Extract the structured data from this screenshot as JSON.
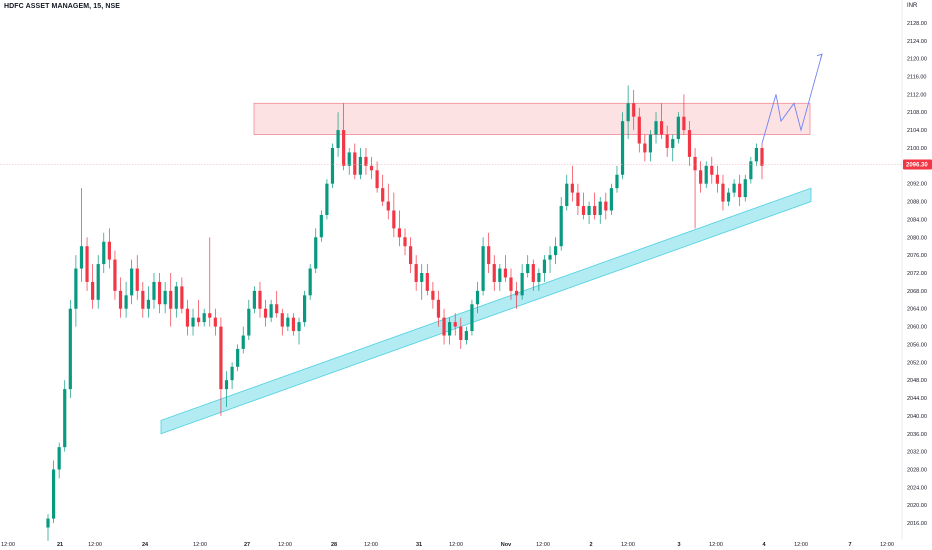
{
  "header": {
    "title": "HDFC ASSET MANAGEM, 15, NSE",
    "currency": "INR"
  },
  "colors": {
    "up": "#089981",
    "down": "#f23645",
    "resistance_fill": "#fde2e4",
    "resistance_stroke": "#f28b95",
    "support_fill": "#b2ebf2",
    "support_stroke": "#4dd0e1",
    "projection": "#6f83f3",
    "price_tag": "#f23645",
    "price_line": "#f7a8b0"
  },
  "chart_data": {
    "type": "candlestick",
    "title": "HDFC ASSET MANAGEM, 15, NSE",
    "ylim": [
      2014,
      2130
    ],
    "y_ticks": [
      2016,
      2020,
      2024,
      2028,
      2032,
      2036,
      2040,
      2044,
      2048,
      2052,
      2056,
      2060,
      2064,
      2068,
      2072,
      2076,
      2080,
      2084,
      2088,
      2092,
      2096,
      2100,
      2104,
      2108,
      2112,
      2116,
      2120,
      2124,
      2128
    ],
    "x_tick_labels": [
      "12:00",
      "21",
      "12:00",
      "24",
      "12:00",
      "27",
      "12:00",
      "28",
      "12:00",
      "31",
      "12:00",
      "Nov",
      "12:00",
      "2",
      "12:00",
      "3",
      "12:00",
      "4",
      "12:00",
      "7",
      "12:00"
    ],
    "last_price": "2096.30",
    "candles": [
      [
        2015,
        2018,
        2012,
        2017
      ],
      [
        2017,
        2030,
        2016,
        2028
      ],
      [
        2028,
        2034,
        2026,
        2033
      ],
      [
        2033,
        2048,
        2032,
        2046
      ],
      [
        2046,
        2066,
        2044,
        2064
      ],
      [
        2064,
        2076,
        2060,
        2073
      ],
      [
        2073,
        2091,
        2070,
        2078
      ],
      [
        2078,
        2080,
        2068,
        2070
      ],
      [
        2070,
        2074,
        2064,
        2066
      ],
      [
        2066,
        2076,
        2064,
        2074
      ],
      [
        2074,
        2081,
        2072,
        2079
      ],
      [
        2079,
        2082,
        2073,
        2075
      ],
      [
        2075,
        2077,
        2066,
        2068
      ],
      [
        2068,
        2071,
        2062,
        2064
      ],
      [
        2064,
        2070,
        2062,
        2067
      ],
      [
        2067,
        2075,
        2065,
        2073
      ],
      [
        2073,
        2076,
        2066,
        2068
      ],
      [
        2068,
        2070,
        2062,
        2064
      ],
      [
        2064,
        2069,
        2062,
        2066
      ],
      [
        2066,
        2072,
        2064,
        2070
      ],
      [
        2070,
        2072,
        2063,
        2065
      ],
      [
        2065,
        2070,
        2063,
        2068
      ],
      [
        2068,
        2072,
        2060,
        2064
      ],
      [
        2064,
        2070,
        2062,
        2069
      ],
      [
        2069,
        2071,
        2063,
        2064
      ],
      [
        2064,
        2066,
        2058,
        2060
      ],
      [
        2060,
        2064,
        2058,
        2062
      ],
      [
        2062,
        2066,
        2060,
        2061
      ],
      [
        2061,
        2064,
        2060,
        2063
      ],
      [
        2063,
        2080,
        2060,
        2062
      ],
      [
        2062,
        2064,
        2058,
        2060
      ],
      [
        2060,
        2062,
        2040,
        2046
      ],
      [
        2046,
        2050,
        2042,
        2048
      ],
      [
        2048,
        2052,
        2046,
        2051
      ],
      [
        2051,
        2056,
        2050,
        2055
      ],
      [
        2055,
        2060,
        2054,
        2058
      ],
      [
        2058,
        2066,
        2057,
        2064
      ],
      [
        2064,
        2069,
        2063,
        2068
      ],
      [
        2068,
        2070,
        2062,
        2064
      ],
      [
        2064,
        2066,
        2060,
        2062
      ],
      [
        2062,
        2066,
        2061,
        2065
      ],
      [
        2065,
        2068,
        2062,
        2063
      ],
      [
        2063,
        2064,
        2058,
        2060
      ],
      [
        2060,
        2063,
        2059,
        2062
      ],
      [
        2062,
        2063,
        2058,
        2059
      ],
      [
        2059,
        2062,
        2056,
        2061
      ],
      [
        2061,
        2068,
        2060,
        2067
      ],
      [
        2067,
        2074,
        2066,
        2073
      ],
      [
        2073,
        2082,
        2072,
        2080
      ],
      [
        2080,
        2086,
        2079,
        2085
      ],
      [
        2085,
        2093,
        2084,
        2092
      ],
      [
        2092,
        2101,
        2091,
        2100
      ],
      [
        2100,
        2108,
        2098,
        2104
      ],
      [
        2104,
        2110,
        2095,
        2096
      ],
      [
        2096,
        2100,
        2094,
        2099
      ],
      [
        2099,
        2101,
        2093,
        2094
      ],
      [
        2094,
        2100,
        2093,
        2098
      ],
      [
        2098,
        2100,
        2094,
        2096
      ],
      [
        2096,
        2098,
        2093,
        2095
      ],
      [
        2095,
        2097,
        2090,
        2091
      ],
      [
        2091,
        2094,
        2087,
        2088
      ],
      [
        2088,
        2092,
        2084,
        2086
      ],
      [
        2086,
        2090,
        2080,
        2082
      ],
      [
        2082,
        2086,
        2078,
        2080
      ],
      [
        2080,
        2082,
        2076,
        2078
      ],
      [
        2078,
        2080,
        2072,
        2074
      ],
      [
        2074,
        2076,
        2068,
        2070
      ],
      [
        2070,
        2074,
        2066,
        2072
      ],
      [
        2072,
        2074,
        2067,
        2068
      ],
      [
        2068,
        2070,
        2064,
        2066
      ],
      [
        2066,
        2068,
        2060,
        2062
      ],
      [
        2062,
        2064,
        2056,
        2058
      ],
      [
        2058,
        2062,
        2056,
        2061
      ],
      [
        2061,
        2063,
        2058,
        2060
      ],
      [
        2060,
        2062,
        2055,
        2057
      ],
      [
        2057,
        2060,
        2056,
        2059
      ],
      [
        2059,
        2066,
        2058,
        2065
      ],
      [
        2065,
        2070,
        2063,
        2068
      ],
      [
        2068,
        2080,
        2067,
        2078
      ],
      [
        2078,
        2081,
        2072,
        2074
      ],
      [
        2074,
        2076,
        2068,
        2070
      ],
      [
        2070,
        2074,
        2068,
        2073
      ],
      [
        2073,
        2076,
        2070,
        2071
      ],
      [
        2071,
        2073,
        2066,
        2068
      ],
      [
        2068,
        2070,
        2064,
        2067
      ],
      [
        2067,
        2074,
        2066,
        2072
      ],
      [
        2072,
        2076,
        2071,
        2074
      ],
      [
        2074,
        2075,
        2068,
        2070
      ],
      [
        2070,
        2073,
        2068,
        2072
      ],
      [
        2072,
        2076,
        2070,
        2075
      ],
      [
        2075,
        2078,
        2072,
        2076
      ],
      [
        2076,
        2080,
        2074,
        2078
      ],
      [
        2078,
        2089,
        2077,
        2087
      ],
      [
        2087,
        2094,
        2086,
        2092
      ],
      [
        2092,
        2096,
        2088,
        2090
      ],
      [
        2090,
        2092,
        2085,
        2087
      ],
      [
        2087,
        2090,
        2084,
        2085
      ],
      [
        2085,
        2088,
        2083,
        2087
      ],
      [
        2087,
        2090,
        2084,
        2085
      ],
      [
        2085,
        2089,
        2083,
        2088
      ],
      [
        2088,
        2090,
        2084,
        2086
      ],
      [
        2086,
        2092,
        2085,
        2091
      ],
      [
        2091,
        2096,
        2090,
        2094
      ],
      [
        2094,
        2108,
        2093,
        2106
      ],
      [
        2106,
        2114,
        2102,
        2110
      ],
      [
        2110,
        2113,
        2104,
        2107
      ],
      [
        2107,
        2109,
        2099,
        2101
      ],
      [
        2101,
        2103,
        2097,
        2099
      ],
      [
        2099,
        2104,
        2097,
        2103
      ],
      [
        2103,
        2108,
        2101,
        2106
      ],
      [
        2106,
        2110,
        2102,
        2103
      ],
      [
        2103,
        2105,
        2098,
        2100
      ],
      [
        2100,
        2103,
        2097,
        2102
      ],
      [
        2102,
        2108,
        2101,
        2107
      ],
      [
        2107,
        2112,
        2103,
        2104
      ],
      [
        2104,
        2106,
        2096,
        2098
      ],
      [
        2098,
        2100,
        2082,
        2095
      ],
      [
        2095,
        2097,
        2090,
        2092
      ],
      [
        2092,
        2097,
        2091,
        2096
      ],
      [
        2096,
        2098,
        2092,
        2094
      ],
      [
        2094,
        2096,
        2090,
        2092
      ],
      [
        2092,
        2094,
        2086,
        2088
      ],
      [
        2088,
        2091,
        2087,
        2090
      ],
      [
        2090,
        2093,
        2089,
        2092
      ],
      [
        2092,
        2094,
        2087,
        2089
      ],
      [
        2089,
        2094,
        2088,
        2093
      ],
      [
        2093,
        2098,
        2092,
        2097
      ],
      [
        2097,
        2101,
        2096,
        2100
      ],
      [
        2100,
        2101,
        2093,
        2096
      ]
    ],
    "resistance_zone": [
      2103,
      2110
    ],
    "support_channel": {
      "from": [
        2036,
        2039
      ],
      "to": [
        2088,
        2091
      ]
    },
    "projection": [
      2101,
      2112,
      2106,
      2110,
      2104,
      2121
    ]
  }
}
